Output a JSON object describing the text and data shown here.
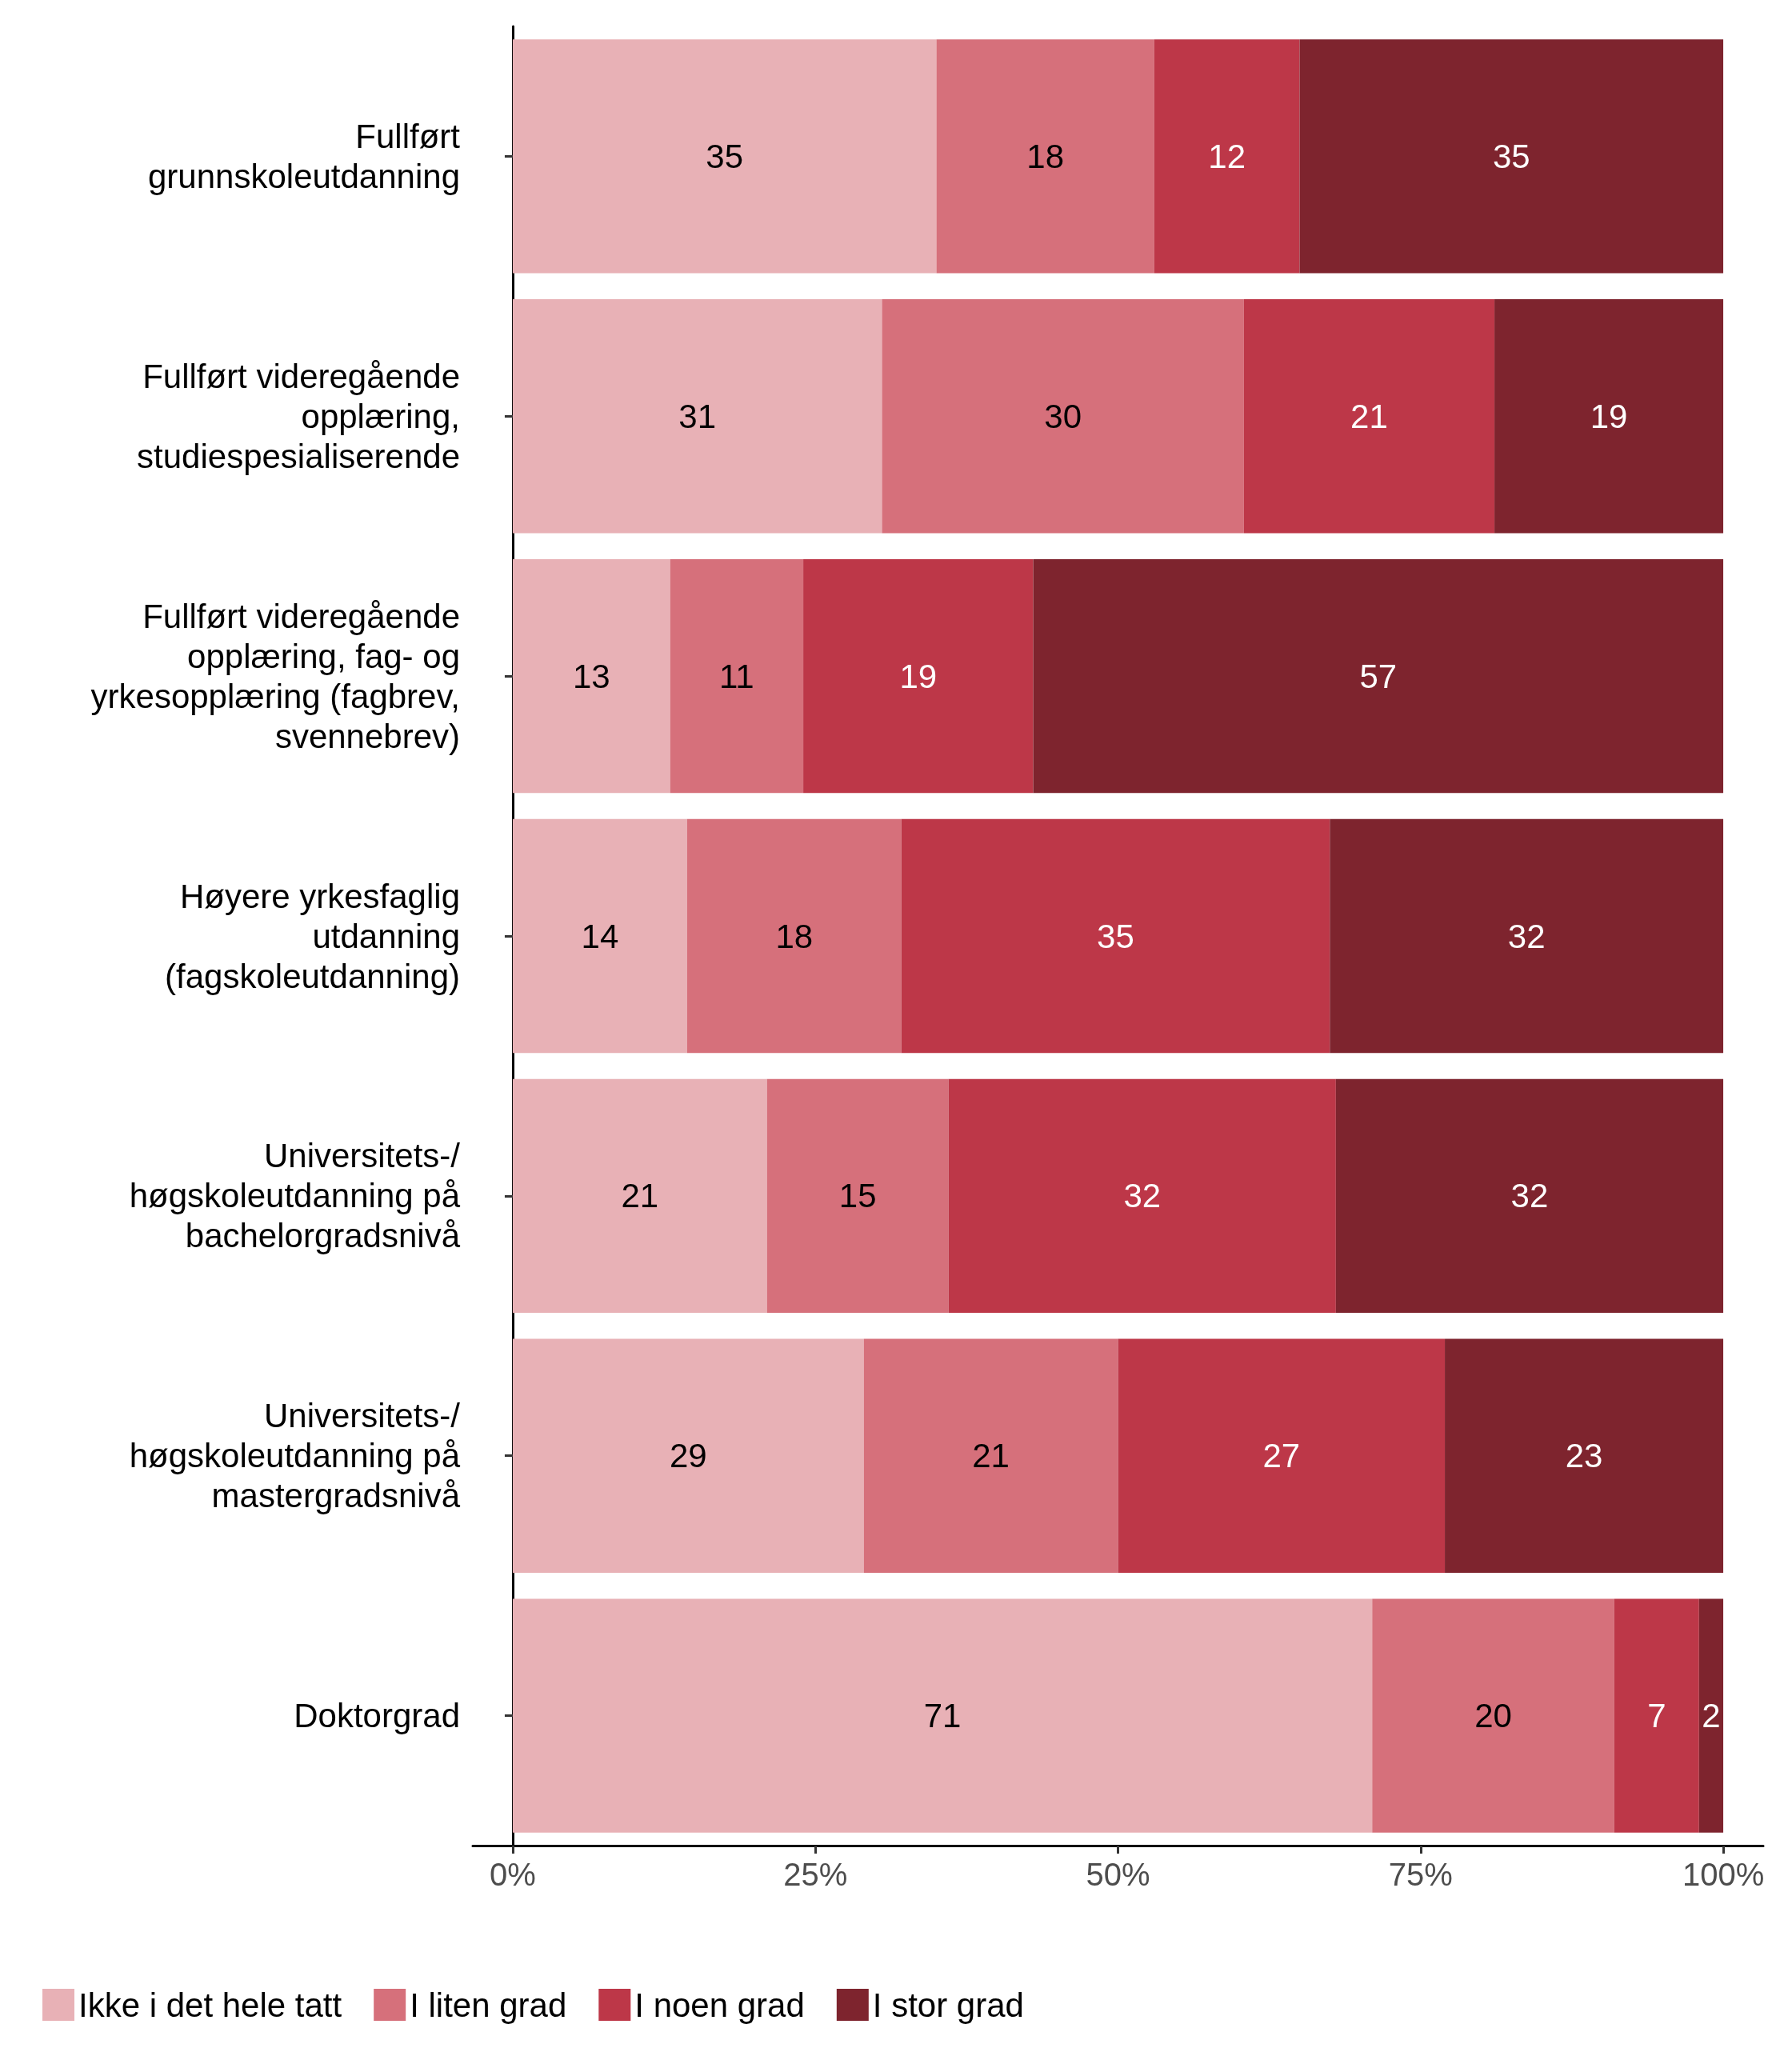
{
  "chart_data": {
    "type": "bar",
    "orientation": "horizontal",
    "stacked": true,
    "categories": [
      "Fullført\ngrunnskoleutdanning",
      "Fullført videregående\nopplæring,\nstudiespesialiserende",
      "Fullført videregående\nopplæring, fag- og\nyrkesopplæring (fagbrev,\nsvennebrev)",
      "Høyere yrkesfaglig\nutdanning\n(fagskoleutdanning)",
      "Universitets-/\nhøgskoleutdanning på\nbachelorgradsnivå",
      "Universitets-/\nhøgskoleutdanning på\nmastergradsnivå",
      "Doktorgrad"
    ],
    "series": [
      {
        "name": "Ikke i det hele tatt",
        "color": "#e8b1b6",
        "values": [
          35,
          30.5,
          13,
          14.4,
          21,
          29,
          71
        ],
        "value_labels": [
          "35",
          "31",
          "13",
          "14",
          "21",
          "29",
          "71"
        ]
      },
      {
        "name": "I liten grad",
        "color": "#d6707b",
        "values": [
          18,
          29.9,
          11,
          17.7,
          15,
          21,
          20
        ],
        "value_labels": [
          "18",
          "30",
          "11",
          "18",
          "15",
          "21",
          "20"
        ]
      },
      {
        "name": "I noen grad",
        "color": "#bd3748",
        "values": [
          12,
          20.7,
          19,
          35.4,
          32,
          27,
          7
        ],
        "value_labels": [
          "12",
          "21",
          "19",
          "35",
          "32",
          "27",
          "7"
        ]
      },
      {
        "name": "I stor grad",
        "color": "#7e242e",
        "values": [
          35,
          18.9,
          57,
          32.5,
          32,
          23,
          2
        ],
        "value_labels": [
          "35",
          "19",
          "57",
          "32",
          "32",
          "23",
          "2"
        ]
      }
    ],
    "xlim": [
      -3.3,
      103.3
    ],
    "xticks": [
      {
        "value": 0,
        "label": "0%"
      },
      {
        "value": 25,
        "label": "25%"
      },
      {
        "value": 50,
        "label": "50%"
      },
      {
        "value": 75,
        "label": "75%"
      },
      {
        "value": 100,
        "label": "100%"
      }
    ],
    "grid": false,
    "legend": "bottom left"
  }
}
